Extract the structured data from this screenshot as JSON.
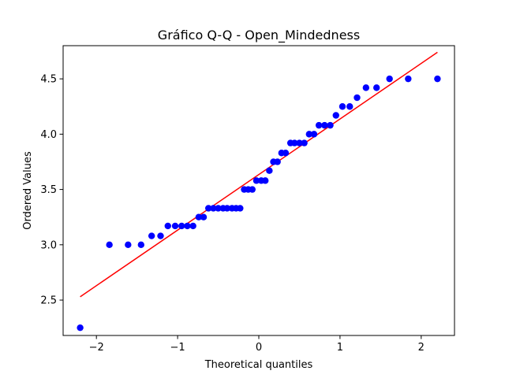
{
  "chart_data": {
    "type": "scatter",
    "title": "Gráfico Q-Q - Open_Mindedness",
    "xlabel": "Theoretical quantiles",
    "ylabel": "Ordered Values",
    "xlim": [
      -2.41,
      2.41
    ],
    "ylim": [
      2.18,
      4.8
    ],
    "x_ticks": [
      -2,
      -1,
      0,
      1,
      2
    ],
    "x_tick_labels": [
      "−2",
      "−1",
      "0",
      "1",
      "2"
    ],
    "y_ticks": [
      2.5,
      3.0,
      3.5,
      4.0,
      4.5
    ],
    "y_tick_labels": [
      "2.5",
      "3.0",
      "3.5",
      "4.0",
      "4.5"
    ],
    "grid": false,
    "legend": "none",
    "points_color": "#0000ff",
    "line_color": "#ff0000",
    "series": [
      {
        "kind": "points",
        "x": [
          -2.2,
          -1.84,
          -1.61,
          -1.45,
          -1.32,
          -1.21,
          -1.12,
          -1.03,
          -0.95,
          -0.88,
          -0.81,
          -0.74,
          -0.68,
          -0.62,
          -0.56,
          -0.5,
          -0.44,
          -0.39,
          -0.33,
          -0.28,
          -0.23,
          -0.18,
          -0.13,
          -0.08,
          -0.03,
          0.03,
          0.08,
          0.13,
          0.18,
          0.23,
          0.28,
          0.33,
          0.39,
          0.44,
          0.5,
          0.56,
          0.62,
          0.68,
          0.74,
          0.81,
          0.88,
          0.95,
          1.03,
          1.12,
          1.21,
          1.32,
          1.45,
          1.61,
          1.84,
          2.2
        ],
        "y": [
          2.25,
          3.0,
          3.0,
          3.0,
          3.08,
          3.08,
          3.17,
          3.17,
          3.17,
          3.17,
          3.17,
          3.25,
          3.25,
          3.33,
          3.33,
          3.33,
          3.33,
          3.33,
          3.33,
          3.33,
          3.33,
          3.5,
          3.5,
          3.5,
          3.58,
          3.58,
          3.58,
          3.67,
          3.75,
          3.75,
          3.83,
          3.83,
          3.92,
          3.92,
          3.92,
          3.92,
          4.0,
          4.0,
          4.08,
          4.08,
          4.08,
          4.17,
          4.25,
          4.25,
          4.33,
          4.42,
          4.42,
          4.5,
          4.5,
          4.5
        ]
      },
      {
        "kind": "fit-line",
        "x": [
          -2.2,
          2.2
        ],
        "y": [
          2.53,
          4.74
        ]
      }
    ]
  }
}
